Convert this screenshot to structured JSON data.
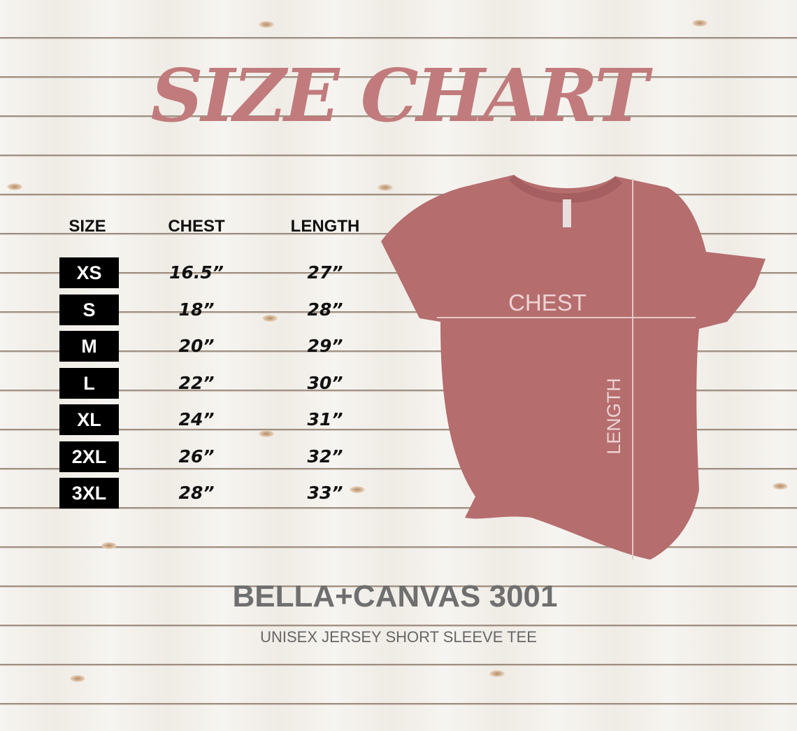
{
  "title": "SIZE CHART",
  "table": {
    "headers": {
      "size": "SIZE",
      "chest": "CHEST",
      "length": "LENGTH"
    },
    "rows": [
      {
        "size": "XS",
        "chest": "16.5”",
        "length": "27”"
      },
      {
        "size": "S",
        "chest": "18”",
        "length": "28”"
      },
      {
        "size": "M",
        "chest": "20”",
        "length": "29”"
      },
      {
        "size": "L",
        "chest": "22”",
        "length": "30”"
      },
      {
        "size": "XL",
        "chest": "24”",
        "length": "31”"
      },
      {
        "size": "2XL",
        "chest": "26”",
        "length": "32”"
      },
      {
        "size": "3XL",
        "chest": "28”",
        "length": "33”"
      }
    ]
  },
  "shirt": {
    "chest_label": "CHEST",
    "length_label": "LENGTH",
    "color": "#b56d6e"
  },
  "brand": "BELLA+CANVAS 3001",
  "subtitle": "UNISEX JERSEY SHORT SLEEVE TEE",
  "colors": {
    "title": "#c17b7c",
    "brand": "#6f6f6f"
  }
}
